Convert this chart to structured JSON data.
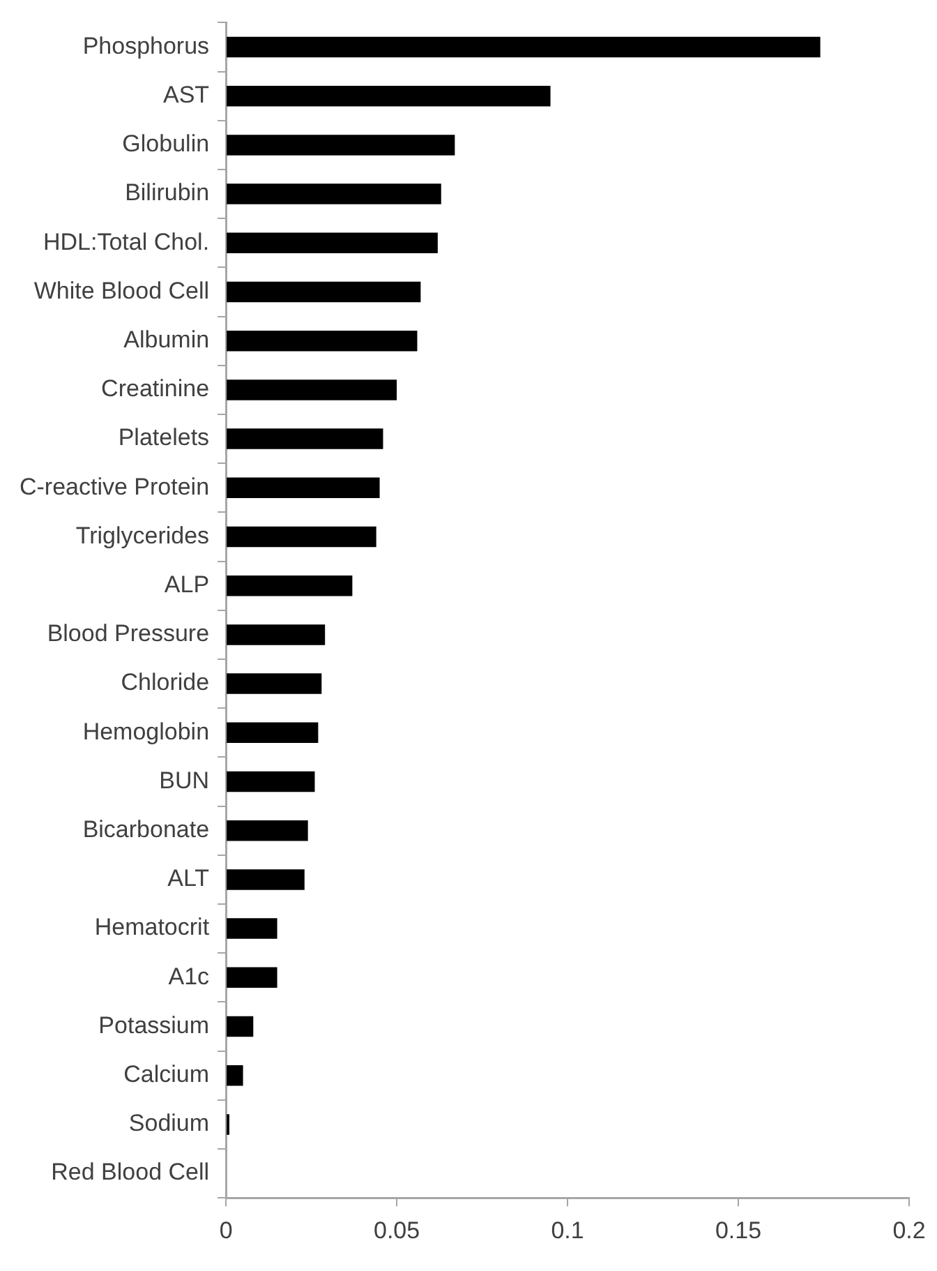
{
  "chart_data": {
    "type": "bar",
    "orientation": "horizontal",
    "categories": [
      "Phosphorus",
      "AST",
      "Globulin",
      "Bilirubin",
      "HDL:Total Chol.",
      "White Blood Cell",
      "Albumin",
      "Creatinine",
      "Platelets",
      "C-reactive Protein",
      "Triglycerides",
      "ALP",
      "Blood Pressure",
      "Chloride",
      "Hemoglobin",
      "BUN",
      "Bicarbonate",
      "ALT",
      "Hematocrit",
      "A1c",
      "Potassium",
      "Calcium",
      "Sodium",
      "Red Blood Cell"
    ],
    "values": [
      0.174,
      0.095,
      0.067,
      0.063,
      0.062,
      0.057,
      0.056,
      0.05,
      0.046,
      0.045,
      0.044,
      0.037,
      0.029,
      0.028,
      0.027,
      0.026,
      0.024,
      0.023,
      0.015,
      0.015,
      0.008,
      0.005,
      0.001,
      0
    ],
    "color": "#000000",
    "xlim": [
      0,
      0.2
    ],
    "xticks": [
      0,
      0.05,
      0.1,
      0.15,
      0.2
    ],
    "grid": false,
    "legend": false
  }
}
